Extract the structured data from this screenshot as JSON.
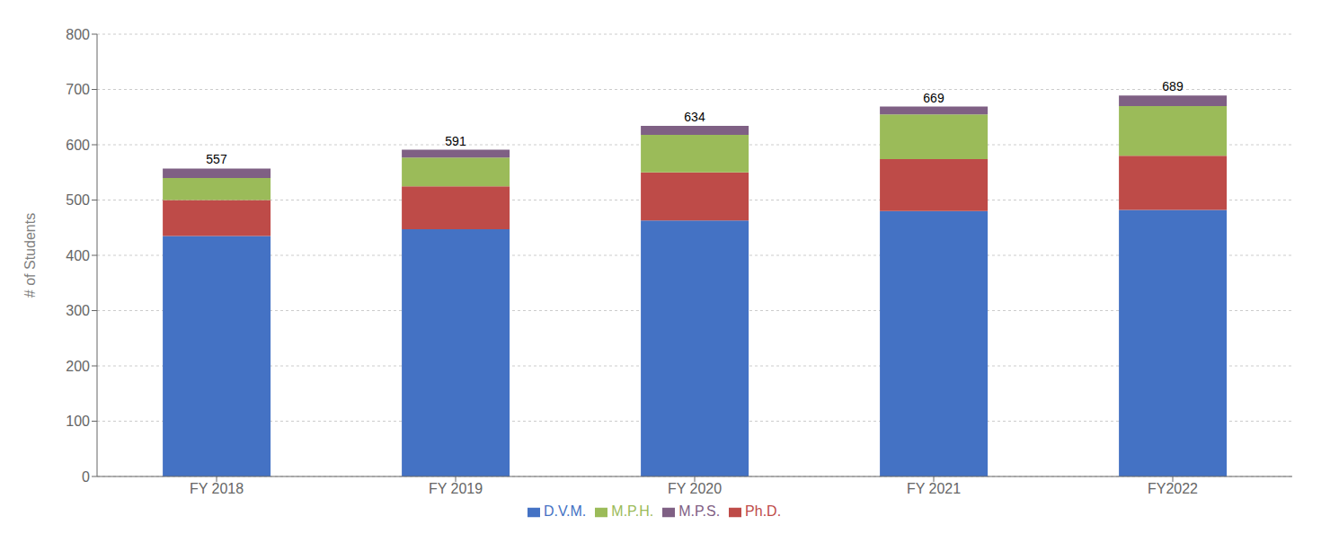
{
  "chart_data": {
    "type": "bar",
    "stacked": true,
    "categories": [
      "FY 2018",
      "FY 2019",
      "FY 2020",
      "FY 2021",
      "FY2022"
    ],
    "series": [
      {
        "name": "D.V.M.",
        "color": "#4472C4",
        "values": [
          435,
          447,
          463,
          480,
          482
        ]
      },
      {
        "name": "Ph.D.",
        "color": "#BE4B48",
        "values": [
          65,
          78,
          87,
          94,
          98
        ]
      },
      {
        "name": "M.P.H.",
        "color": "#9BBB59",
        "values": [
          40,
          52,
          68,
          81,
          90
        ]
      },
      {
        "name": "M.P.S.",
        "color": "#7F6084",
        "values": [
          17,
          14,
          16,
          14,
          19
        ]
      }
    ],
    "annotations": [
      {
        "x": "FY 2018",
        "y": 557,
        "text": "557"
      },
      {
        "x": "FY 2019",
        "y": 591,
        "text": "591"
      },
      {
        "x": "FY 2020",
        "y": 634,
        "text": "634"
      },
      {
        "x": "FY 2021",
        "y": 669,
        "text": "669"
      },
      {
        "x": "FY2022",
        "y": 689,
        "text": "689"
      }
    ],
    "ylabel": "# of Students",
    "ylim": [
      0,
      800
    ],
    "yticks": [
      0,
      100,
      200,
      300,
      400,
      500,
      600,
      700,
      800
    ],
    "grid": true,
    "legend": "bottom"
  }
}
